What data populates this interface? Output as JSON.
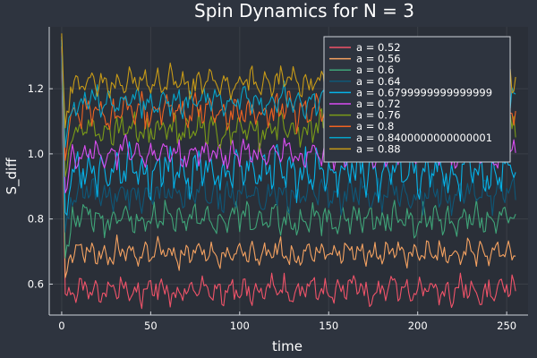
{
  "chart_data": {
    "type": "line",
    "title": "Spin Dynamics for N = 3",
    "xlabel": "time",
    "ylabel": "S_diff",
    "xlim": [
      -7,
      262
    ],
    "ylim": [
      0.505,
      1.39
    ],
    "xticks": [
      0,
      50,
      100,
      150,
      200,
      250
    ],
    "yticks": [
      0.6,
      0.8,
      1.0,
      1.2
    ],
    "grid": true,
    "legend_position": "top-right",
    "background_color": "#2e343f",
    "plot_background_color": "#2a2f38",
    "series": [
      {
        "name": "a = 0.52",
        "color": "#f05369",
        "initial": 1.33,
        "dip": 0.57,
        "mean": 0.58,
        "amp": 0.025
      },
      {
        "name": "a = 0.56",
        "color": "#f5a261",
        "initial": 1.33,
        "dip": 0.62,
        "mean": 0.695,
        "amp": 0.022
      },
      {
        "name": "a = 0.6",
        "color": "#3fa478",
        "initial": 1.34,
        "dip": 0.68,
        "mean": 0.8,
        "amp": 0.028
      },
      {
        "name": "a = 0.64",
        "color": "#0e5777",
        "initial": 1.34,
        "dip": 0.76,
        "mean": 0.875,
        "amp": 0.03
      },
      {
        "name": "a = 0.6799999999999999",
        "color": "#06b3e8",
        "initial": 1.35,
        "dip": 0.82,
        "mean": 0.945,
        "amp": 0.04
      },
      {
        "name": "a = 0.72",
        "color": "#d94df2",
        "initial": 1.35,
        "dip": 0.88,
        "mean": 1.0,
        "amp": 0.025
      },
      {
        "name": "a = 0.76",
        "color": "#7a9b18",
        "initial": 1.36,
        "dip": 0.93,
        "mean": 1.075,
        "amp": 0.03
      },
      {
        "name": "a = 0.8",
        "color": "#f06221",
        "initial": 1.36,
        "dip": 0.98,
        "mean": 1.13,
        "amp": 0.03
      },
      {
        "name": "a = 0.8400000000000001",
        "color": "#06a3c9",
        "initial": 1.36,
        "dip": 1.02,
        "mean": 1.16,
        "amp": 0.025
      },
      {
        "name": "a = 0.88",
        "color": "#c79a17",
        "initial": 1.37,
        "dip": 1.08,
        "mean": 1.22,
        "amp": 0.025
      }
    ],
    "t_max": 255
  }
}
